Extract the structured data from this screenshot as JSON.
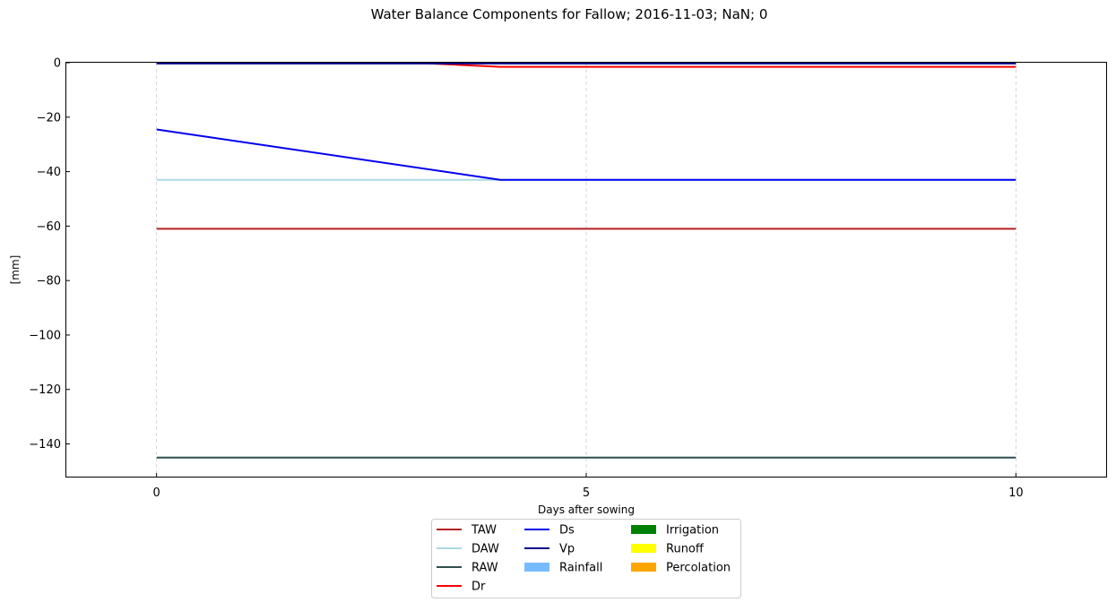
{
  "chart_data": {
    "type": "line",
    "title": "Water Balance Components for Fallow; 2016-11-03; NaN; 0",
    "xlabel": "Days after sowing",
    "ylabel": "[mm]",
    "xlim": [
      -1.05,
      11.05
    ],
    "ylim": [
      -152,
      0
    ],
    "xticks": [
      0,
      5,
      10
    ],
    "yticks": [
      0,
      -20,
      -40,
      -60,
      -80,
      -100,
      -120,
      -140
    ],
    "x_grid": true,
    "y_grid": false,
    "legend_position": "bottom-center, below plot",
    "series": [
      {
        "name": "TAW",
        "kind": "line",
        "color": "#b22222",
        "x": [
          0,
          10
        ],
        "y": [
          -61,
          -61
        ]
      },
      {
        "name": "DAW",
        "kind": "line",
        "color": "#add8e6",
        "x": [
          0,
          4,
          10
        ],
        "y": [
          -43,
          -43,
          -43
        ]
      },
      {
        "name": "RAW",
        "kind": "line",
        "color": "#2f4f4f",
        "x": [
          0,
          10
        ],
        "y": [
          -145,
          -145
        ]
      },
      {
        "name": "Dr",
        "kind": "line",
        "color": "#ff0000",
        "x": [
          0,
          3,
          4,
          10
        ],
        "y": [
          0,
          0,
          -1.5,
          -1.5
        ]
      },
      {
        "name": "Ds",
        "kind": "line",
        "color": "#0000ee",
        "x": [
          0,
          4,
          10
        ],
        "y": [
          -24.5,
          -43,
          -43
        ]
      },
      {
        "name": "Vp",
        "kind": "line",
        "color": "#00008b",
        "x": [
          0,
          10
        ],
        "y": [
          -0.3,
          -0.3
        ]
      },
      {
        "name": "Rainfall",
        "kind": "bar",
        "color": "#77bbff",
        "x": [],
        "y": []
      },
      {
        "name": "Irrigation",
        "kind": "bar",
        "color": "#008000",
        "x": [],
        "y": []
      },
      {
        "name": "Runoff",
        "kind": "bar",
        "color": "#ffff00",
        "x": [],
        "y": []
      },
      {
        "name": "Percolation",
        "kind": "bar",
        "color": "#ffa500",
        "x": [],
        "y": []
      }
    ],
    "legend_columns": [
      [
        "TAW",
        "DAW",
        "RAW",
        "Dr"
      ],
      [
        "Ds",
        "Vp",
        "Rainfall"
      ],
      [
        "Irrigation",
        "Runoff",
        "Percolation"
      ]
    ]
  }
}
